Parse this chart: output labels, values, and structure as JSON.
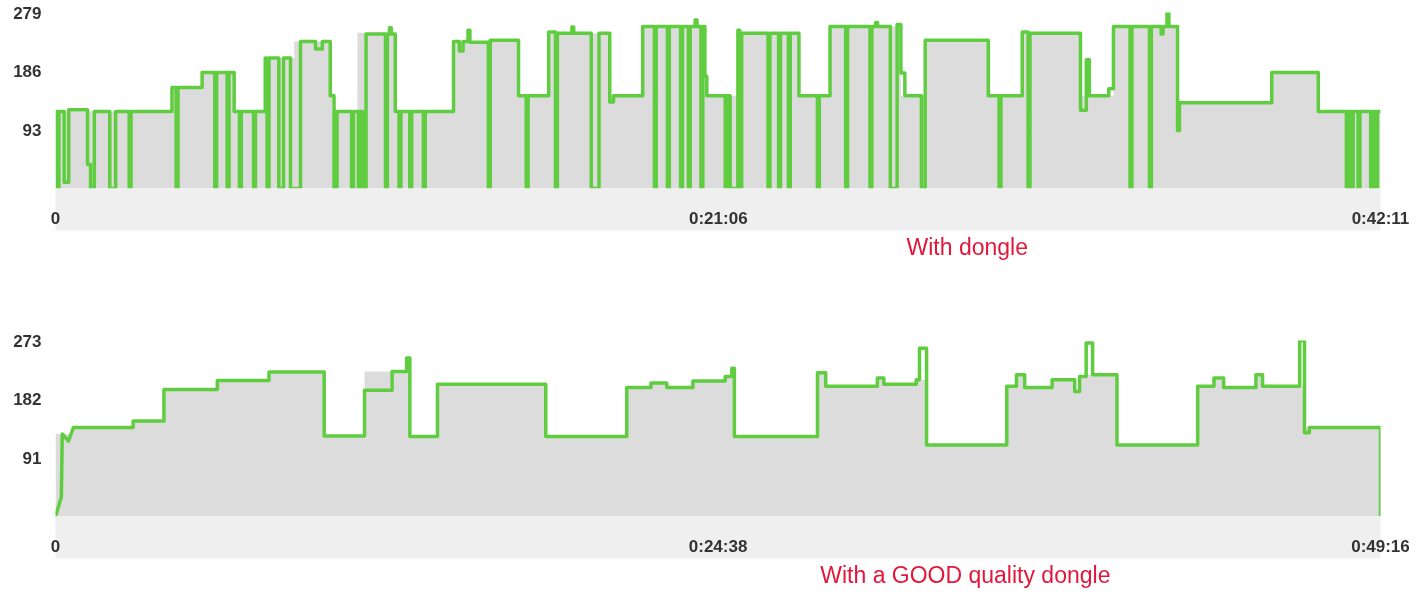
{
  "chart_data": [
    {
      "type": "area",
      "xlim": [
        0,
        0.7031
      ],
      "xticks": [
        0,
        {
          "value": 0.3517,
          "label": "0:21:06"
        },
        {
          "value": 0.7031,
          "label": "0:42:11"
        }
      ],
      "ylim": [
        0,
        279
      ],
      "yticks": [
        93,
        186,
        279
      ],
      "annotations": [
        "With dongle"
      ],
      "series": [
        {
          "color": "#dcdcdc",
          "x": [
            0,
            0.0618,
            0.0618,
            0.0778,
            0.0778,
            0.0948,
            0.0948,
            0.1113,
            0.1113,
            0.1267,
            0.1267,
            0.1468,
            0.1468,
            0.1602,
            0.1602,
            0.1803,
            0.1803,
            0.2112,
            0.2112,
            0.2457,
            0.2457,
            0.2617,
            0.2617,
            0.2941,
            0.2941,
            0.3116,
            0.3116,
            0.3451,
            0.3451,
            0.3621,
            0.3621,
            0.3945,
            0.3945,
            0.411,
            0.411,
            0.4486,
            0.4486,
            0.4615,
            0.4615,
            0.495,
            0.495,
            0.513,
            0.513,
            0.5439,
            0.5439,
            0.5614,
            0.5614,
            0.5954,
            0.5954,
            0.6454,
            0.6454,
            0.6701,
            0.6701,
            0.7031
          ],
          "values": [
            122,
            122,
            160,
            160,
            184,
            184,
            122,
            122,
            207,
            207,
            233,
            233,
            122,
            122,
            247,
            247,
            122,
            122,
            233,
            233,
            147,
            147,
            246,
            246,
            147,
            147,
            257,
            257,
            147,
            147,
            246,
            246,
            147,
            147,
            257,
            257,
            147,
            147,
            235,
            235,
            147,
            147,
            246,
            246,
            147,
            147,
            257,
            257,
            136,
            136,
            184,
            184,
            122,
            122
          ]
        },
        {
          "type": "step",
          "color": "#5fcd3f",
          "x": [
            0,
            0.001,
            0.0018,
            0.0046,
            0.007,
            0.017,
            0.0186,
            0.0206,
            0.0288,
            0.0319,
            0.0391,
            0.0401,
            0.0618,
            0.064,
            0.065,
            0.0778,
            0.0845,
            0.0855,
            0.0911,
            0.0921,
            0.0948,
            0.0976,
            0.0986,
            0.1051,
            0.1061,
            0.1113,
            0.1123,
            0.1133,
            0.1185,
            0.121,
            0.1247,
            0.13,
            0.138,
            0.1416,
            0.1458,
            0.1478,
            0.1494,
            0.1571,
            0.1581,
            0.1607,
            0.1617,
            0.1633,
            0.1648,
            0.1751,
            0.1761,
            0.1772,
            0.1782,
            0.1803,
            0.1823,
            0.1833,
            0.188,
            0.189,
            0.1952,
            0.1962,
            0.2112,
            0.2143,
            0.2163,
            0.2189,
            0.2199,
            0.2297,
            0.2307,
            0.2457,
            0.2498,
            0.2508,
            0.2617,
            0.2653,
            0.2663,
            0.274,
            0.275,
            0.2843,
            0.2884,
            0.2941,
            0.2961,
            0.3116,
            0.3178,
            0.3188,
            0.3247,
            0.3257,
            0.3317,
            0.3327,
            0.3358,
            0.3368,
            0.3394,
            0.3404,
            0.3425,
            0.3435,
            0.3446,
            0.3456,
            0.3554,
            0.3564,
            0.358,
            0.3621,
            0.3631,
            0.3641,
            0.3781,
            0.3791,
            0.3837,
            0.3847,
            0.3889,
            0.3899,
            0.3945,
            0.4043,
            0.4053,
            0.411,
            0.4193,
            0.4203,
            0.4322,
            0.4332,
            0.4352,
            0.4362,
            0.443,
            0.4466,
            0.4486,
            0.4507,
            0.4595,
            0.4615,
            0.495,
            0.5007,
            0.5017,
            0.513,
            0.5161,
            0.5171,
            0.5439,
            0.547,
            0.5486,
            0.5589,
            0.5614,
            0.5702,
            0.5712,
            0.5805,
            0.5815,
            0.5867,
            0.5877,
            0.5898,
            0.5908,
            0.5954,
            0.5964,
            0.6454,
            0.6701,
            0.685,
            0.686,
            0.6876,
            0.6886,
            0.6912,
            0.6922,
            0.6979,
            0.6989,
            0.7005,
            0.7015,
            0.7031
          ],
          "values": [
            122,
            0,
            122,
            10,
            125,
            38,
            0,
            122,
            0,
            122,
            0,
            122,
            160,
            0,
            160,
            184,
            0,
            184,
            0,
            184,
            122,
            0,
            122,
            0,
            122,
            207,
            0,
            207,
            0,
            207,
            0,
            233,
            221,
            233,
            147,
            0,
            122,
            0,
            122,
            0,
            122,
            0,
            245,
            0,
            245,
            255,
            245,
            122,
            0,
            122,
            0,
            122,
            0,
            122,
            233,
            218,
            233,
            251,
            232,
            0,
            235,
            147,
            0,
            147,
            248,
            0,
            246,
            256,
            246,
            0,
            246,
            137,
            147,
            257,
            0,
            257,
            0,
            257,
            0,
            257,
            0,
            257,
            267,
            257,
            0,
            257,
            178,
            147,
            0,
            147,
            0,
            251,
            0,
            246,
            0,
            246,
            0,
            246,
            0,
            246,
            147,
            0,
            147,
            257,
            0,
            257,
            0,
            257,
            263,
            257,
            0,
            260,
            183,
            147,
            0,
            235,
            147,
            0,
            147,
            248,
            0,
            246,
            124,
            204,
            147,
            158,
            257,
            0,
            257,
            0,
            257,
            245,
            257,
            279,
            257,
            92,
            136,
            184,
            122,
            0,
            122,
            0,
            122,
            0,
            122,
            0,
            122,
            0,
            122,
            122
          ]
        }
      ]
    },
    {
      "type": "area",
      "xlim": [
        0,
        0.8211
      ],
      "xticks": [
        0,
        {
          "value": 0.4106,
          "label": "0:24:38"
        },
        {
          "value": 0.8211,
          "label": "0:49:16"
        }
      ],
      "ylim": [
        0,
        273
      ],
      "yticks": [
        91,
        182,
        273
      ],
      "annotations": [
        "With a GOOD quality dongle"
      ],
      "series": [
        {
          "color": "#dcdcdc",
          "x": [
            0,
            0.0111,
            0.0111,
            0.0481,
            0.0481,
            0.0672,
            0.0672,
            0.1003,
            0.1003,
            0.1323,
            0.1323,
            0.1665,
            0.1665,
            0.1915,
            0.1915,
            0.2196,
            0.2196,
            0.2367,
            0.2367,
            0.3038,
            0.3038,
            0.354,
            0.354,
            0.369,
            0.369,
            0.3788,
            0.3788,
            0.395,
            0.395,
            0.415,
            0.415,
            0.4207,
            0.4207,
            0.4722,
            0.4722,
            0.4773,
            0.4773,
            0.5093,
            0.5093,
            0.5133,
            0.5133,
            0.5334,
            0.5334,
            0.5398,
            0.5398,
            0.5895,
            0.5895,
            0.5955,
            0.5955,
            0.6006,
            0.6006,
            0.6176,
            0.6176,
            0.6316,
            0.6316,
            0.6346,
            0.6346,
            0.6387,
            0.6387,
            0.6578,
            0.6578,
            0.7078,
            0.7078,
            0.7179,
            0.7179,
            0.7239,
            0.7239,
            0.7439,
            0.7439,
            0.748,
            0.748,
            0.774,
            0.774,
            0.8211
          ],
          "values": [
            128,
            128,
            138,
            138,
            148,
            148,
            197,
            197,
            211,
            211,
            224,
            224,
            125,
            125,
            225,
            225,
            124,
            124,
            205,
            205,
            124,
            124,
            200,
            200,
            207,
            207,
            200,
            200,
            210,
            210,
            217,
            217,
            124,
            124,
            223,
            223,
            202,
            202,
            215,
            215,
            205,
            205,
            212,
            212,
            111,
            111,
            202,
            202,
            220,
            220,
            200,
            200,
            212,
            212,
            194,
            194,
            217,
            217,
            220,
            220,
            111,
            111,
            202,
            202,
            215,
            215,
            200,
            200,
            220,
            220,
            202,
            202,
            138,
            138
          ]
        },
        {
          "type": "line",
          "color": "#5fcd3f",
          "x": [
            0,
            0.0024,
            0.0036,
            0.0042,
            0.008,
            0.0111,
            0.0481,
            0.0481,
            0.0672,
            0.0672,
            0.1003,
            0.1003,
            0.1323,
            0.1323,
            0.1665,
            0.1665,
            0.1915,
            0.1915,
            0.2086,
            0.2086,
            0.2176,
            0.2176,
            0.2196,
            0.2196,
            0.2367,
            0.2367,
            0.3038,
            0.3038,
            0.354,
            0.354,
            0.369,
            0.369,
            0.3788,
            0.3788,
            0.395,
            0.395,
            0.415,
            0.415,
            0.4191,
            0.4191,
            0.4207,
            0.4207,
            0.4722,
            0.4722,
            0.4773,
            0.4773,
            0.5093,
            0.5093,
            0.5133,
            0.5133,
            0.5334,
            0.5334,
            0.5354,
            0.5354,
            0.5398,
            0.5398,
            0.5895,
            0.5895,
            0.5955,
            0.5955,
            0.6006,
            0.6006,
            0.6176,
            0.6176,
            0.6316,
            0.6316,
            0.6346,
            0.6346,
            0.6387,
            0.6387,
            0.6427,
            0.6427,
            0.6578,
            0.6578,
            0.7078,
            0.7078,
            0.7179,
            0.7179,
            0.7239,
            0.7239,
            0.7439,
            0.7439,
            0.748,
            0.748,
            0.771,
            0.771,
            0.774,
            0.774,
            0.777,
            0.777,
            0.8211,
            0.8211
          ],
          "values": [
            0,
            20,
            30,
            128,
            117,
            138,
            138,
            148,
            148,
            197,
            197,
            211,
            211,
            224,
            224,
            125,
            125,
            196,
            196,
            225,
            225,
            246,
            246,
            124,
            124,
            205,
            205,
            124,
            124,
            200,
            200,
            207,
            207,
            200,
            200,
            210,
            210,
            217,
            217,
            230,
            230,
            124,
            124,
            223,
            223,
            202,
            202,
            215,
            215,
            205,
            205,
            212,
            212,
            261,
            261,
            111,
            111,
            202,
            202,
            220,
            220,
            200,
            200,
            212,
            212,
            194,
            194,
            217,
            217,
            269,
            269,
            220,
            220,
            111,
            111,
            202,
            202,
            215,
            215,
            200,
            200,
            220,
            220,
            202,
            202,
            273,
            273,
            130,
            130,
            138,
            138,
            0
          ]
        }
      ]
    }
  ]
}
